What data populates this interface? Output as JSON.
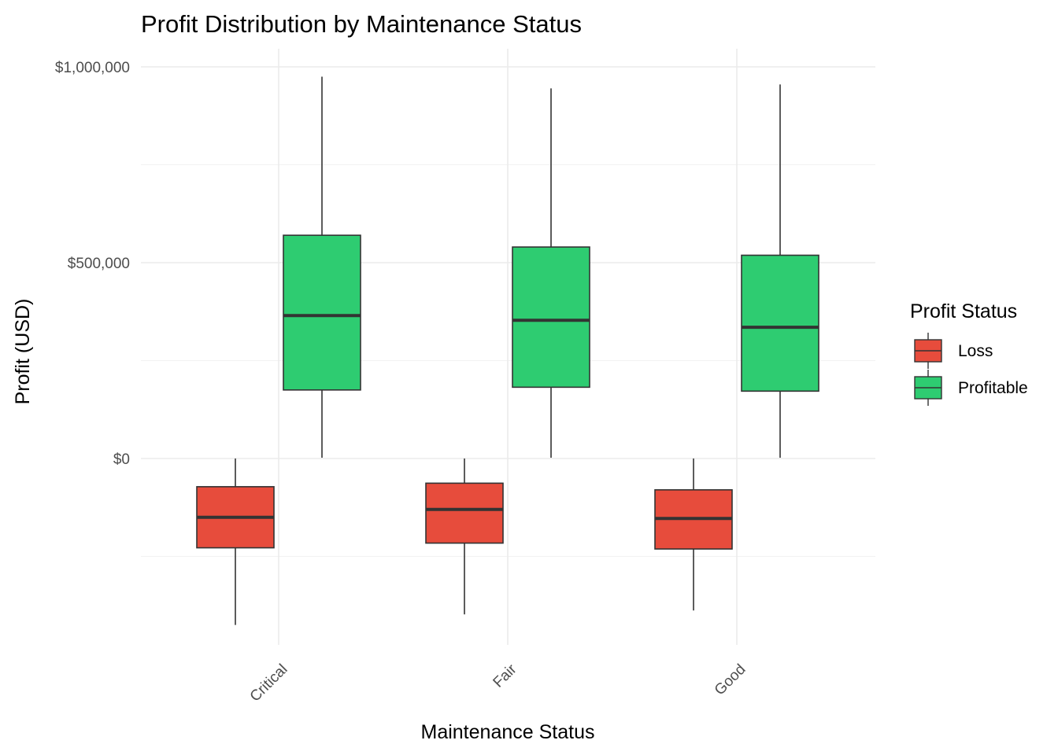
{
  "chart_data": {
    "type": "boxplot",
    "title": "Profit Distribution by Maintenance Status",
    "xlabel": "Maintenance Status",
    "ylabel": "Profit (USD)",
    "categories": [
      "Critical",
      "Fair",
      "Good"
    ],
    "ylim": [
      -480000,
      1060000
    ],
    "y_ticks": [
      0,
      500000,
      1000000
    ],
    "y_tick_labels": [
      "$0",
      "$500,000",
      "$1,000,000"
    ],
    "grid": true,
    "legend": {
      "title": "Profit Status",
      "position": "right"
    },
    "series": [
      {
        "name": "Loss",
        "color": "#E74C3C",
        "boxes": [
          {
            "category": "Critical",
            "min": -425000,
            "q1": -228000,
            "median": -150000,
            "q3": -72000,
            "max": 0
          },
          {
            "category": "Fair",
            "min": -398000,
            "q1": -216000,
            "median": -130000,
            "q3": -63000,
            "max": 0
          },
          {
            "category": "Good",
            "min": -388000,
            "q1": -231000,
            "median": -153000,
            "q3": -80000,
            "max": 0
          }
        ]
      },
      {
        "name": "Profitable",
        "color": "#2ECC71",
        "boxes": [
          {
            "category": "Critical",
            "min": 2000,
            "q1": 175000,
            "median": 365000,
            "q3": 570000,
            "max": 975000
          },
          {
            "category": "Fair",
            "min": 2000,
            "q1": 182000,
            "median": 353000,
            "q3": 540000,
            "max": 945000
          },
          {
            "category": "Good",
            "min": 2000,
            "q1": 172000,
            "median": 335000,
            "q3": 519000,
            "max": 955000
          }
        ]
      }
    ]
  }
}
